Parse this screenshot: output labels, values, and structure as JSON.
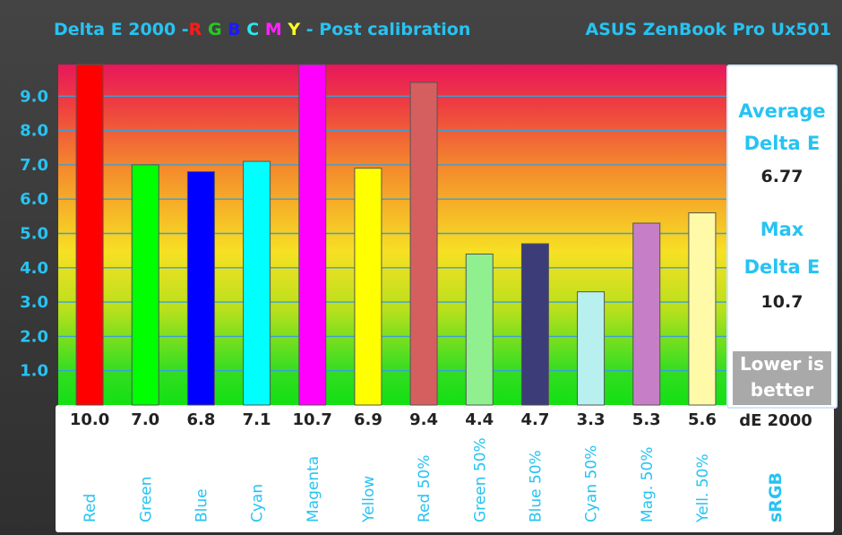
{
  "title_left_prefix": "Delta E 2000 -",
  "title_letters": [
    {
      "text": "R",
      "color": "#ff1a1a"
    },
    {
      "text": "G",
      "color": "#22cc22"
    },
    {
      "text": "B",
      "color": "#1a1aff"
    },
    {
      "text": "C",
      "color": "#27e8f2"
    },
    {
      "text": "M",
      "color": "#ff22ff"
    },
    {
      "text": "Y",
      "color": "#ffff22"
    }
  ],
  "title_left_suffix": "- Post calibration",
  "title_right": "ASUS ZenBook Pro Ux501",
  "side_panel": {
    "avg_label_1": "Average",
    "avg_label_2": "Delta E",
    "avg_value": "6.77",
    "max_label_1": "Max",
    "max_label_2": "Delta E",
    "max_value": "10.7",
    "lower_1": "Lower is",
    "lower_2": "better"
  },
  "bottom_panel": {
    "unit": "dE 2000",
    "color_space": "sRGB"
  },
  "chart_data": {
    "type": "bar",
    "title": "Delta E 2000 -R G B C M Y - Post calibration",
    "categories": [
      "Red",
      "Green",
      "Blue",
      "Cyan",
      "Magenta",
      "Yellow",
      "Red 50%",
      "Green 50%",
      "Blue 50%",
      "Cyan 50%",
      "Mag. 50%",
      "Yell. 50%"
    ],
    "values": [
      10.0,
      7.0,
      6.8,
      7.1,
      10.7,
      6.9,
      9.4,
      4.4,
      4.7,
      3.3,
      5.3,
      5.6
    ],
    "value_labels": [
      "10.0",
      "7.0",
      "6.8",
      "7.1",
      "10.7",
      "6.9",
      "9.4",
      "4.4",
      "4.7",
      "3.3",
      "5.3",
      "5.6"
    ],
    "bar_colors": [
      "#ff0000",
      "#00ff00",
      "#0000ff",
      "#00ffff",
      "#ff00ff",
      "#ffff00",
      "#d55f5f",
      "#90f090",
      "#3c3c78",
      "#b8f0f0",
      "#c67fc6",
      "#fffaa8"
    ],
    "yticks": [
      "1.0",
      "2.0",
      "3.0",
      "4.0",
      "5.0",
      "6.0",
      "7.0",
      "8.0",
      "9.0"
    ],
    "ylim": [
      0,
      10
    ],
    "grid": true,
    "xlabel": "",
    "ylabel": ""
  }
}
